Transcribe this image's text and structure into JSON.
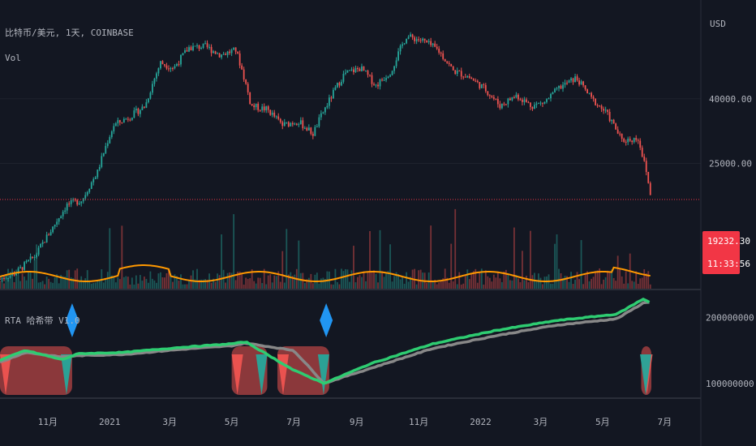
{
  "title": "比特币/美元, 1天, COINBASE",
  "volume_label": "Vol",
  "indicator_label": "RTA 哈希带 V1.0",
  "currency": "USD",
  "price": {
    "last": "19232.30",
    "countdown": "11:33:56",
    "badge_color": "#f23645",
    "up_color": "#26a69a",
    "down_color": "#ef5350"
  },
  "chart_data": [
    {
      "type": "candlestick",
      "name": "main-price",
      "scale": "log",
      "y_ticks": [
        25000,
        40000
      ],
      "ylim": [
        10000,
        82000
      ],
      "x_tick_labels": [
        "11月",
        "2021",
        "3月",
        "5月",
        "7月",
        "9月",
        "11月",
        "2022",
        "3月",
        "5月",
        "7月"
      ],
      "x": [
        "2020-09-15",
        "2020-10-01",
        "2020-10-20",
        "2020-11-05",
        "2020-11-20",
        "2020-12-05",
        "2020-12-20",
        "2021-01-05",
        "2021-01-20",
        "2021-02-05",
        "2021-02-20",
        "2021-03-05",
        "2021-03-20",
        "2021-04-05",
        "2021-04-20",
        "2021-05-05",
        "2021-05-20",
        "2021-06-05",
        "2021-06-20",
        "2021-07-05",
        "2021-07-20",
        "2021-08-05",
        "2021-08-20",
        "2021-09-05",
        "2021-09-20",
        "2021-10-05",
        "2021-10-20",
        "2021-11-05",
        "2021-11-20",
        "2021-12-05",
        "2021-12-20",
        "2022-01-05",
        "2022-01-20",
        "2022-02-05",
        "2022-02-20",
        "2022-03-05",
        "2022-03-20",
        "2022-04-05",
        "2022-04-20",
        "2022-05-05",
        "2022-05-20",
        "2022-06-05",
        "2022-06-18"
      ],
      "close": [
        10800,
        11300,
        12800,
        15500,
        18500,
        19200,
        23500,
        33000,
        35000,
        38000,
        52000,
        50000,
        58000,
        58500,
        55000,
        57000,
        38000,
        37000,
        33000,
        34000,
        31000,
        39500,
        48000,
        50000,
        44000,
        49000,
        63000,
        61000,
        57000,
        49000,
        47000,
        43000,
        38000,
        41000,
        38000,
        39000,
        43500,
        46500,
        40000,
        36000,
        29500,
        30000,
        19232
      ],
      "volume_avg_line_color": "#ff9800"
    },
    {
      "type": "line",
      "name": "hash-ribbons",
      "y_ticks": [
        100000000,
        200000000
      ],
      "ylim": [
        80000000,
        240000000
      ],
      "series": [
        {
          "color": "#2ecc71",
          "x": [
            "2020-09-15",
            "2020-10-10",
            "2020-11-15",
            "2020-12-01",
            "2021-01-15",
            "2021-03-15",
            "2021-05-01",
            "2021-05-15",
            "2021-07-01",
            "2021-07-31",
            "2021-09-15",
            "2021-11-15",
            "2022-01-15",
            "2022-03-15",
            "2022-05-15",
            "2022-06-10",
            "2022-06-18"
          ],
          "values": [
            135000000,
            150000000,
            136000000,
            145000000,
            147000000,
            155000000,
            160000000,
            163000000,
            120000000,
            100000000,
            130000000,
            160000000,
            180000000,
            195000000,
            205000000,
            228000000,
            222000000
          ]
        },
        {
          "color": "#888888",
          "x": [
            "2020-09-15",
            "2020-10-10",
            "2020-11-15",
            "2020-12-01",
            "2021-01-15",
            "2021-03-15",
            "2021-05-01",
            "2021-05-15",
            "2021-07-01",
            "2021-07-31",
            "2021-09-15",
            "2021-11-15",
            "2022-01-15",
            "2022-03-15",
            "2022-05-15",
            "2022-06-10",
            "2022-06-18"
          ],
          "values": [
            132000000,
            147000000,
            140000000,
            142000000,
            144000000,
            152000000,
            157000000,
            161000000,
            150000000,
            100000000,
            123000000,
            153000000,
            172000000,
            188000000,
            198000000,
            222000000,
            224000000
          ]
        }
      ],
      "capitulation_zones": [
        [
          "2020-09-15",
          "2020-11-25"
        ],
        [
          "2021-05-01",
          "2021-06-05"
        ],
        [
          "2021-06-15",
          "2021-08-05"
        ],
        [
          "2022-06-08",
          "2022-06-18"
        ]
      ],
      "buy_signals": [
        "2020-11-25",
        "2021-08-02"
      ]
    }
  ]
}
